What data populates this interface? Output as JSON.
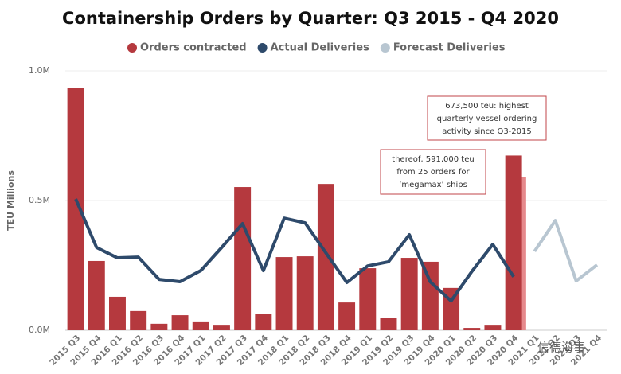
{
  "chart_data": {
    "type": "bar",
    "title": "Containership Orders by Quarter: Q3 2015 - Q4 2020",
    "y_label": "TEU Millions",
    "categories": [
      "2015 Q3",
      "2015 Q4",
      "2016 Q1",
      "2016 Q2",
      "2016 Q3",
      "2016 Q4",
      "2017 Q1",
      "2017 Q2",
      "2017 Q3",
      "2017 Q4",
      "2018 Q1",
      "2018 Q2",
      "2018 Q3",
      "2018 Q4",
      "2019 Q1",
      "2019 Q2",
      "2019 Q3",
      "2019 Q4",
      "2020 Q1",
      "2020 Q2",
      "2020 Q3",
      "2020 Q4",
      "2021 Q1",
      "2021 Q2",
      "2021 Q3",
      "2021 Q4"
    ],
    "series": [
      {
        "name": "Orders contracted",
        "type": "bar",
        "color": "#b5393e",
        "values": [
          0.935,
          0.267,
          0.129,
          0.074,
          0.025,
          0.058,
          0.031,
          0.018,
          0.552,
          0.064,
          0.282,
          0.285,
          0.564,
          0.107,
          0.239,
          0.049,
          0.279,
          0.264,
          0.163,
          0.009,
          0.018,
          0.6735,
          null,
          null,
          null,
          null
        ]
      },
      {
        "name": "Actual Deliveries",
        "type": "line",
        "color": "#2e4a6b",
        "values": [
          0.506,
          0.319,
          0.279,
          0.282,
          0.196,
          0.187,
          0.23,
          0.319,
          0.411,
          0.23,
          0.432,
          0.414,
          0.298,
          0.184,
          0.248,
          0.264,
          0.368,
          0.187,
          0.113,
          0.227,
          0.331,
          0.206,
          null,
          null,
          null,
          null
        ]
      },
      {
        "name": "Forecast Deliveries",
        "type": "line",
        "color": "#b8c6d1",
        "values": [
          null,
          null,
          null,
          null,
          null,
          null,
          null,
          null,
          null,
          null,
          null,
          null,
          null,
          null,
          null,
          null,
          null,
          null,
          null,
          null,
          null,
          null,
          0.304,
          0.423,
          0.19,
          0.252
        ]
      }
    ],
    "annotations": [
      {
        "category": "2020 Q4",
        "value": 0.6735,
        "lines": [
          "673,500 teu: highest",
          "quarterly vessel ordering",
          "activity since Q3-2015"
        ]
      },
      {
        "category": "2020 Q4",
        "value": 0.591,
        "color": "#e6898c",
        "lines": [
          "thereof, 591,000 teu",
          "from 25 orders for",
          "‘megamax’ ships"
        ]
      }
    ],
    "ylim": [
      0,
      1.0
    ],
    "yticks": [
      {
        "value": 0,
        "label": "0.0M"
      },
      {
        "value": 0.5,
        "label": "0.5M"
      },
      {
        "value": 1.0,
        "label": "1.0M"
      }
    ],
    "watermark": "信德海事"
  }
}
